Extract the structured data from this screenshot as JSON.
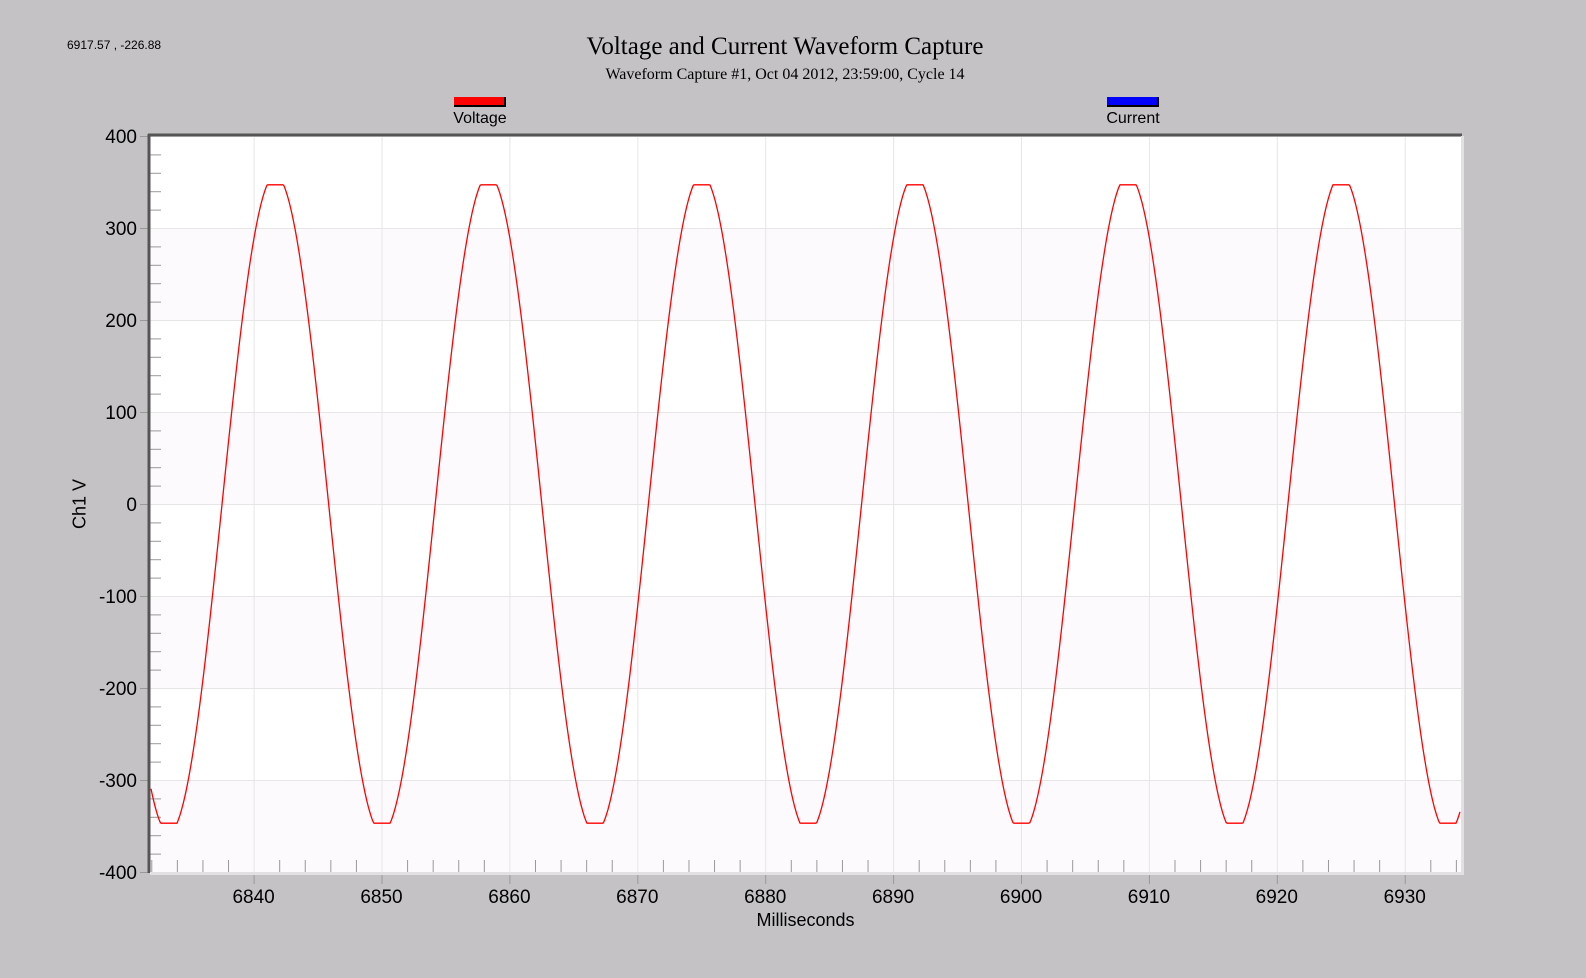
{
  "cursor_readout": "6917.57 , -226.88",
  "header": {
    "title": "Voltage and Current Waveform Capture",
    "subtitle": "Waveform Capture #1, Oct 04 2012, 23:59:00,  Cycle 14"
  },
  "legend": [
    {
      "label": "Voltage",
      "color": "#ff0000"
    },
    {
      "label": "Current",
      "color": "#0000ff"
    }
  ],
  "colors": {
    "background": "#c4c2c5",
    "plot_bg": "#ffffff",
    "plot_band": "#fdfafd",
    "grid": "#e6e6e6",
    "frame": "#555555",
    "voltage": "#ff0000",
    "current": "#0000ff"
  },
  "chart_data": {
    "type": "line",
    "title": "Voltage and Current Waveform Capture",
    "subtitle": "Waveform Capture #1, Oct 04 2012, 23:59:00,  Cycle 14",
    "xlabel": "Milliseconds",
    "ylabel": "Ch1 V",
    "xlim": [
      6831.9,
      6934.4
    ],
    "ylim": [
      -400,
      400
    ],
    "x_ticks": [
      6840,
      6850,
      6860,
      6870,
      6880,
      6890,
      6900,
      6910,
      6920,
      6930
    ],
    "y_ticks": [
      400,
      300,
      200,
      100,
      0,
      -100,
      -200,
      -300,
      -400
    ],
    "grid": true,
    "legend_position": "top",
    "series": [
      {
        "name": "Voltage",
        "color": "#ff0000",
        "waveform": {
          "shape": "sine (slightly flat-topped)",
          "amplitude": 347,
          "frequency_hz": 60,
          "period_ms": 16.667,
          "peak_times_ms": [
            6841.7,
            6858.4,
            6875.0,
            6891.7,
            6908.4,
            6925.0
          ],
          "trough_times_ms": [
            6833.3,
            6850.0,
            6866.7,
            6883.4,
            6900.0,
            6916.7,
            6933.4
          ]
        },
        "x": [
          6831.9,
          6833.3,
          6837.5,
          6841.7,
          6845.8,
          6850.0,
          6854.2,
          6858.4,
          6862.5,
          6866.7,
          6870.9,
          6875.0,
          6879.2,
          6883.4,
          6887.5,
          6891.7,
          6895.9,
          6900.0,
          6904.2,
          6908.4,
          6912.5,
          6916.7,
          6920.9,
          6925.0,
          6929.2,
          6933.4,
          6934.4
        ],
        "values": [
          -310,
          -347,
          0,
          347,
          0,
          -347,
          0,
          347,
          0,
          -347,
          0,
          347,
          0,
          -347,
          0,
          347,
          0,
          -347,
          0,
          347,
          0,
          -347,
          0,
          347,
          0,
          -347,
          -292
        ]
      },
      {
        "name": "Current",
        "color": "#0000ff",
        "x": [],
        "values": []
      }
    ]
  }
}
